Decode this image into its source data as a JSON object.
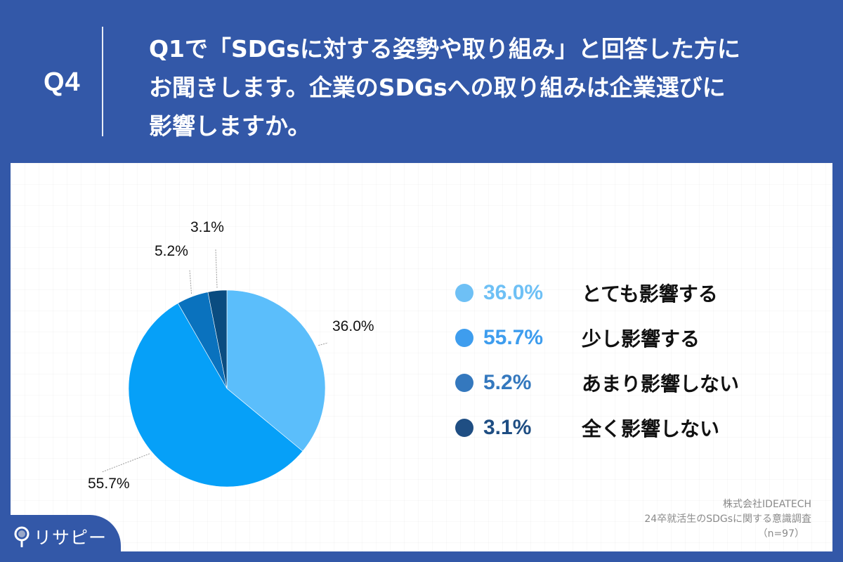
{
  "header": {
    "question_number": "Q4",
    "question_lines": [
      "Q1で「SDGsに対する姿勢や取り組み」と回答した方に",
      "お聞きします。企業のSDGsへの取り組みは企業選びに",
      "影響しますか。"
    ]
  },
  "colors": {
    "header_bg": "#3358a8",
    "panel_bg": "#ffffff",
    "slices": [
      "#5bbefb",
      "#06a0f8",
      "#0a72be",
      "#0a4c80"
    ],
    "legend": [
      "#6ec0f5",
      "#3e9dee",
      "#3478be",
      "#1f4e83"
    ]
  },
  "legend": {
    "items": [
      {
        "percent": "36.0%",
        "label": "とても影響する"
      },
      {
        "percent": "55.7%",
        "label": "少し影響する"
      },
      {
        "percent": "5.2%",
        "label": "あまり影響しない"
      },
      {
        "percent": "3.1%",
        "label": "全く影響しない"
      }
    ]
  },
  "pie_labels": [
    "36.0%",
    "55.7%",
    "5.2%",
    "3.1%"
  ],
  "source": {
    "company": "株式会社IDEATECH",
    "survey": "24卒就活生のSDGsに関する意識調査",
    "sample": "（n=97）"
  },
  "logo": {
    "text": "リサピー"
  },
  "chart_data": {
    "type": "pie",
    "title": "Q1で「SDGsに対する姿勢や取り組み」と回答した方にお聞きします。企業のSDGsへの取り組みは企業選びに影響しますか。",
    "categories": [
      "とても影響する",
      "少し影響する",
      "あまり影響しない",
      "全く影響しない"
    ],
    "values": [
      36.0,
      55.7,
      5.2,
      3.1
    ],
    "unit": "%",
    "start_angle": "12 o'clock, clockwise",
    "legend_position": "right",
    "n": 97,
    "source": "株式会社IDEATECH 24卒就活生のSDGsに関する意識調査"
  }
}
